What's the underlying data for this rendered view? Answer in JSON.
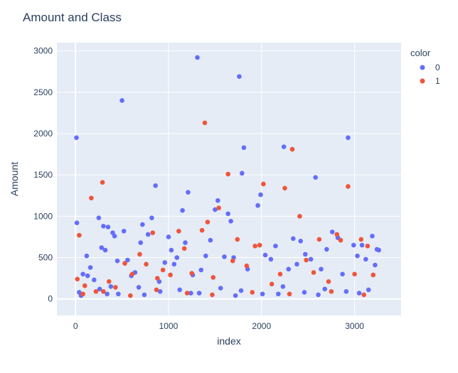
{
  "chart_data": {
    "type": "scatter",
    "title": "Amount and Class",
    "xlabel": "index",
    "ylabel": "Amount",
    "xlim": [
      -200,
      3500
    ],
    "ylim": [
      -200,
      3100
    ],
    "x_ticks": [
      0,
      1000,
      2000,
      3000
    ],
    "y_ticks": [
      0,
      500,
      1000,
      1500,
      2000,
      2500,
      3000
    ],
    "grid": true,
    "legend": {
      "title": "color",
      "position": "top-right"
    },
    "colors": {
      "background": "#e5ecf6",
      "grid": "#ffffff",
      "series_0": "#636efa",
      "series_1": "#ef553b"
    },
    "series": [
      {
        "name": "0",
        "color": "#636efa",
        "x": [
          10,
          15,
          80,
          120,
          130,
          160,
          200,
          250,
          280,
          300,
          320,
          350,
          380,
          400,
          420,
          450,
          500,
          520,
          560,
          600,
          640,
          700,
          720,
          780,
          820,
          860,
          900,
          960,
          1000,
          1030,
          1060,
          1090,
          1150,
          1180,
          1210,
          1260,
          1310,
          1350,
          1400,
          1450,
          1500,
          1530,
          1600,
          1640,
          1670,
          1700,
          1760,
          1790,
          1810,
          1850,
          1960,
          1990,
          2040,
          2100,
          2150,
          2240,
          2290,
          2340,
          2380,
          2420,
          2470,
          2530,
          2580,
          2640,
          2700,
          2760,
          2820,
          2870,
          2930,
          2990,
          3030,
          3080,
          3120,
          3190,
          3220,
          3240,
          3260,
          40,
          260,
          460,
          680,
          910,
          1120,
          1330,
          1560,
          1780,
          2010,
          2230,
          2460,
          2680,
          2910,
          3150,
          60,
          340,
          740,
          1240,
          1720,
          2180,
          2610,
          3050
        ],
        "y": [
          1950,
          920,
          300,
          520,
          280,
          380,
          230,
          980,
          620,
          880,
          590,
          870,
          150,
          800,
          760,
          460,
          2400,
          820,
          470,
          280,
          320,
          680,
          900,
          780,
          980,
          1370,
          210,
          440,
          750,
          590,
          420,
          500,
          1070,
          680,
          1290,
          290,
          2920,
          350,
          520,
          710,
          1080,
          1190,
          510,
          1030,
          940,
          500,
          2690,
          1520,
          1830,
          360,
          1130,
          1260,
          530,
          480,
          640,
          1840,
          360,
          730,
          420,
          700,
          540,
          480,
          1470,
          360,
          600,
          810,
          740,
          300,
          1950,
          650,
          520,
          650,
          480,
          760,
          410,
          600,
          590,
          80,
          120,
          60,
          140,
          90,
          110,
          70,
          130,
          100,
          60,
          150,
          80,
          120,
          90,
          110,
          40,
          60,
          50,
          70,
          40,
          60,
          50,
          70
        ]
      },
      {
        "name": "1",
        "color": "#ef553b",
        "x": [
          20,
          40,
          100,
          170,
          220,
          290,
          360,
          430,
          530,
          610,
          690,
          760,
          830,
          880,
          940,
          1020,
          1110,
          1170,
          1250,
          1360,
          1390,
          1420,
          1480,
          1540,
          1640,
          1690,
          1740,
          1840,
          1930,
          1980,
          2020,
          2110,
          2200,
          2250,
          2330,
          2410,
          2480,
          2560,
          2620,
          2720,
          2810,
          2850,
          2930,
          3000,
          3070,
          3140,
          3200,
          80,
          300,
          590,
          870,
          1200,
          1470,
          1900,
          2300,
          2750,
          3100
        ],
        "y": [
          240,
          770,
          160,
          1220,
          90,
          1410,
          210,
          140,
          430,
          300,
          540,
          420,
          800,
          250,
          350,
          290,
          820,
          610,
          310,
          830,
          2130,
          930,
          260,
          1100,
          1510,
          460,
          720,
          400,
          640,
          650,
          1390,
          180,
          300,
          1340,
          1810,
          1000,
          470,
          320,
          720,
          210,
          780,
          710,
          1360,
          300,
          720,
          640,
          290,
          60,
          90,
          40,
          110,
          70,
          50,
          80,
          60,
          90,
          50
        ]
      }
    ]
  }
}
